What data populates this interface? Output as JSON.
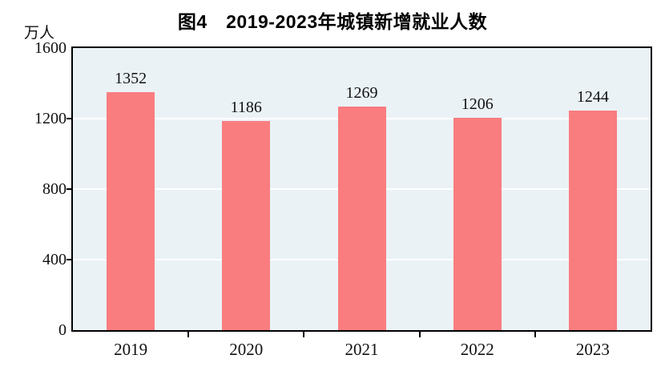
{
  "chart": {
    "title": "图4　2019-2023年城镇新增就业人数",
    "unit_label": "万人"
  },
  "chart_data": {
    "type": "bar",
    "title": "图4　2019-2023年城镇新增就业人数",
    "categories": [
      "2019",
      "2020",
      "2021",
      "2022",
      "2023"
    ],
    "values": [
      1352,
      1186,
      1269,
      1206,
      1244
    ],
    "data_labels": [
      "1352",
      "1186",
      "1269",
      "1206",
      "1244"
    ],
    "xlabel": "",
    "ylabel": "万人",
    "ylim": [
      0,
      1600
    ],
    "yticks": [
      0,
      400,
      800,
      1200,
      1600
    ],
    "interior_yticks": [
      400,
      800,
      1200
    ],
    "grid": true,
    "legend": "none",
    "colors": {
      "bar_fill": "#F97D7F",
      "plot_background": "#EAF2F6",
      "gridline": "#ffffff",
      "axis": "#000000",
      "text": "#111111"
    }
  }
}
